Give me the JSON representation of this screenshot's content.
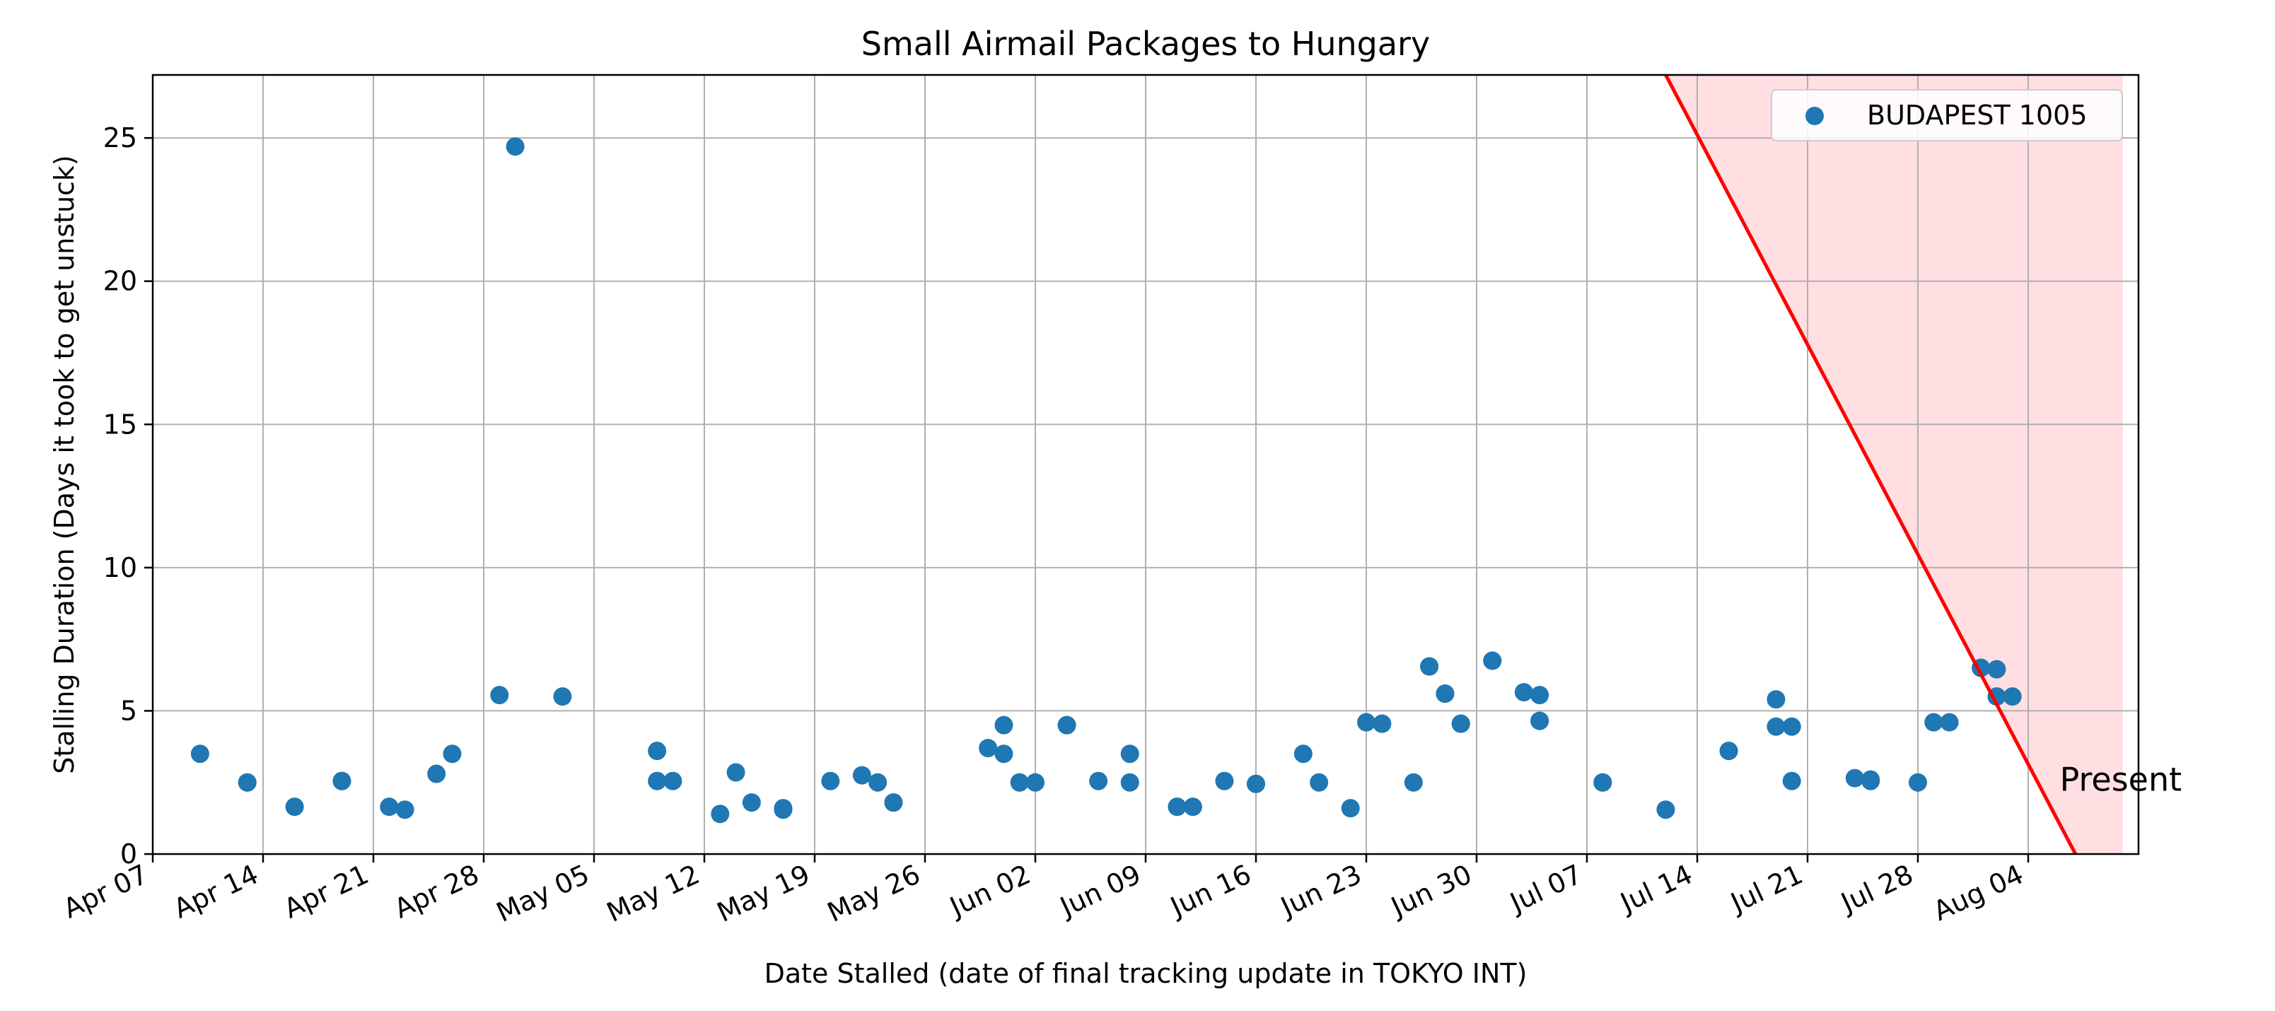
{
  "chart_data": {
    "type": "scatter",
    "title": "Small Airmail Packages to Hungary",
    "xlabel": "Date Stalled (date of final tracking update in TOKYO INT)",
    "ylabel": "Stalling Duration (Days it took to get unstuck)",
    "xlim": [
      "2024-04-07",
      "2024-08-11"
    ],
    "ylim": [
      0,
      27.2
    ],
    "grid": true,
    "legend_position": "top-right",
    "x_ticks": [
      {
        "date": "2024-04-07",
        "label": "Apr 07"
      },
      {
        "date": "2024-04-14",
        "label": "Apr 14"
      },
      {
        "date": "2024-04-21",
        "label": "Apr 21"
      },
      {
        "date": "2024-04-28",
        "label": "Apr 28"
      },
      {
        "date": "2024-05-05",
        "label": "May 05"
      },
      {
        "date": "2024-05-12",
        "label": "May 12"
      },
      {
        "date": "2024-05-19",
        "label": "May 19"
      },
      {
        "date": "2024-05-26",
        "label": "May 26"
      },
      {
        "date": "2024-06-02",
        "label": "Jun 02"
      },
      {
        "date": "2024-06-09",
        "label": "Jun 09"
      },
      {
        "date": "2024-06-16",
        "label": "Jun 16"
      },
      {
        "date": "2024-06-23",
        "label": "Jun 23"
      },
      {
        "date": "2024-06-30",
        "label": "Jun 30"
      },
      {
        "date": "2024-07-07",
        "label": "Jul 07"
      },
      {
        "date": "2024-07-14",
        "label": "Jul 14"
      },
      {
        "date": "2024-07-21",
        "label": "Jul 21"
      },
      {
        "date": "2024-07-28",
        "label": "Jul 28"
      },
      {
        "date": "2024-08-04",
        "label": "Aug 04"
      }
    ],
    "y_ticks": [
      {
        "value": 0,
        "label": "0"
      },
      {
        "value": 5,
        "label": "5"
      },
      {
        "value": 10,
        "label": "10"
      },
      {
        "value": 15,
        "label": "15"
      },
      {
        "value": 20,
        "label": "20"
      },
      {
        "value": 25,
        "label": "25"
      }
    ],
    "series": [
      {
        "name": "BUDAPEST 1005",
        "color": "#1f77b4",
        "points": [
          {
            "x": "2024-04-10",
            "y": 3.5
          },
          {
            "x": "2024-04-13",
            "y": 2.5
          },
          {
            "x": "2024-04-13",
            "y": 2.5
          },
          {
            "x": "2024-04-16",
            "y": 1.65
          },
          {
            "x": "2024-04-19",
            "y": 2.55
          },
          {
            "x": "2024-04-19",
            "y": 2.55
          },
          {
            "x": "2024-04-22",
            "y": 1.65
          },
          {
            "x": "2024-04-23",
            "y": 1.55
          },
          {
            "x": "2024-04-25",
            "y": 2.8
          },
          {
            "x": "2024-04-26",
            "y": 3.5
          },
          {
            "x": "2024-04-29",
            "y": 5.55
          },
          {
            "x": "2024-04-30",
            "y": 24.7
          },
          {
            "x": "2024-05-03",
            "y": 5.5
          },
          {
            "x": "2024-05-09",
            "y": 3.6
          },
          {
            "x": "2024-05-09",
            "y": 2.55
          },
          {
            "x": "2024-05-10",
            "y": 2.55
          },
          {
            "x": "2024-05-13",
            "y": 1.4
          },
          {
            "x": "2024-05-14",
            "y": 2.85
          },
          {
            "x": "2024-05-15",
            "y": 1.8
          },
          {
            "x": "2024-05-17",
            "y": 1.6
          },
          {
            "x": "2024-05-17",
            "y": 1.55
          },
          {
            "x": "2024-05-20",
            "y": 2.55
          },
          {
            "x": "2024-05-22",
            "y": 2.75
          },
          {
            "x": "2024-05-23",
            "y": 2.5
          },
          {
            "x": "2024-05-24",
            "y": 1.8
          },
          {
            "x": "2024-05-24",
            "y": 1.8
          },
          {
            "x": "2024-05-30",
            "y": 3.7
          },
          {
            "x": "2024-05-31",
            "y": 3.5
          },
          {
            "x": "2024-05-31",
            "y": 4.5
          },
          {
            "x": "2024-06-01",
            "y": 2.5
          },
          {
            "x": "2024-06-01",
            "y": 2.5
          },
          {
            "x": "2024-06-02",
            "y": 2.5
          },
          {
            "x": "2024-06-04",
            "y": 4.5
          },
          {
            "x": "2024-06-04",
            "y": 4.5
          },
          {
            "x": "2024-06-06",
            "y": 2.55
          },
          {
            "x": "2024-06-08",
            "y": 3.5
          },
          {
            "x": "2024-06-08",
            "y": 2.5
          },
          {
            "x": "2024-06-11",
            "y": 1.65
          },
          {
            "x": "2024-06-11",
            "y": 1.65
          },
          {
            "x": "2024-06-12",
            "y": 1.65
          },
          {
            "x": "2024-06-14",
            "y": 2.55
          },
          {
            "x": "2024-06-16",
            "y": 2.45
          },
          {
            "x": "2024-06-16",
            "y": 2.45
          },
          {
            "x": "2024-06-19",
            "y": 3.5
          },
          {
            "x": "2024-06-20",
            "y": 2.5
          },
          {
            "x": "2024-06-22",
            "y": 1.6
          },
          {
            "x": "2024-06-23",
            "y": 4.6
          },
          {
            "x": "2024-06-24",
            "y": 4.55
          },
          {
            "x": "2024-06-24",
            "y": 4.55
          },
          {
            "x": "2024-06-26",
            "y": 2.5
          },
          {
            "x": "2024-06-27",
            "y": 6.55
          },
          {
            "x": "2024-06-27",
            "y": 6.55
          },
          {
            "x": "2024-06-28",
            "y": 5.6
          },
          {
            "x": "2024-06-28",
            "y": 5.6
          },
          {
            "x": "2024-06-29",
            "y": 4.55
          },
          {
            "x": "2024-06-29",
            "y": 4.55
          },
          {
            "x": "2024-07-01",
            "y": 6.75
          },
          {
            "x": "2024-07-01",
            "y": 6.75
          },
          {
            "x": "2024-07-03",
            "y": 5.65
          },
          {
            "x": "2024-07-04",
            "y": 5.55
          },
          {
            "x": "2024-07-04",
            "y": 4.65
          },
          {
            "x": "2024-07-04",
            "y": 4.65
          },
          {
            "x": "2024-07-08",
            "y": 2.5
          },
          {
            "x": "2024-07-08",
            "y": 2.5
          },
          {
            "x": "2024-07-12",
            "y": 1.55
          },
          {
            "x": "2024-07-16",
            "y": 3.6
          },
          {
            "x": "2024-07-16",
            "y": 3.6
          },
          {
            "x": "2024-07-19",
            "y": 5.4
          },
          {
            "x": "2024-07-19",
            "y": 4.45
          },
          {
            "x": "2024-07-20",
            "y": 4.45
          },
          {
            "x": "2024-07-20",
            "y": 2.55
          },
          {
            "x": "2024-07-24",
            "y": 2.65
          },
          {
            "x": "2024-07-25",
            "y": 2.6
          },
          {
            "x": "2024-07-25",
            "y": 2.55
          },
          {
            "x": "2024-07-28",
            "y": 2.5
          },
          {
            "x": "2024-07-29",
            "y": 4.6
          },
          {
            "x": "2024-07-30",
            "y": 4.6
          },
          {
            "x": "2024-08-01",
            "y": 6.5
          },
          {
            "x": "2024-08-01",
            "y": 6.5
          },
          {
            "x": "2024-08-02",
            "y": 6.45
          },
          {
            "x": "2024-08-02",
            "y": 5.5
          },
          {
            "x": "2024-08-03",
            "y": 5.5
          }
        ]
      }
    ],
    "annotations": [
      {
        "kind": "line",
        "color": "#ff0000",
        "from": {
          "x": "2024-07-12",
          "y": 27.2
        },
        "to": {
          "x": "2024-08-07",
          "y": 0
        }
      },
      {
        "kind": "shaded-region",
        "color": "#ffdfe2",
        "polygon": [
          {
            "x": "2024-07-12",
            "y": 27.2
          },
          {
            "x": "2024-08-10",
            "y": 27.2
          },
          {
            "x": "2024-08-10",
            "y": 0
          },
          {
            "x": "2024-08-07",
            "y": 0
          }
        ]
      },
      {
        "kind": "text",
        "text": "Present",
        "color": "#ff0000",
        "at": {
          "x": "2024-08-06",
          "y": 2.6
        }
      }
    ]
  }
}
